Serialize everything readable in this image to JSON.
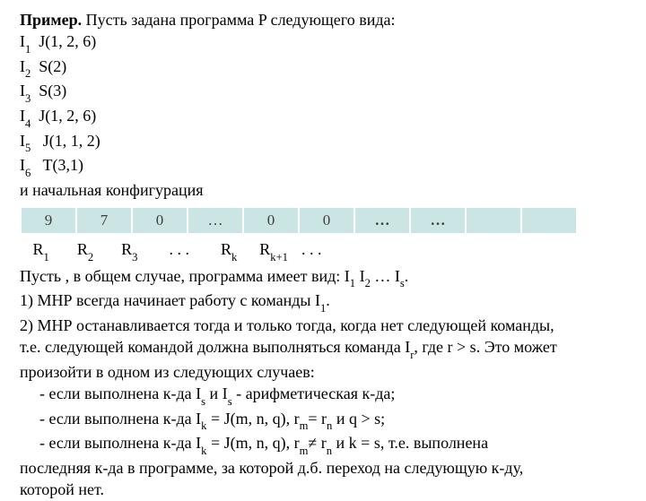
{
  "intro_bold": "Пример.",
  "intro_rest": " Пусть задана программа P  следующего вида:",
  "instr": [
    {
      "idx": "1",
      "body": "J(1, 2, 6)",
      "pad": "  "
    },
    {
      "idx": "2",
      "body": "S(2)",
      "pad": "  "
    },
    {
      "idx": "3",
      "body": "S(3)",
      "pad": "  "
    },
    {
      "idx": "4",
      "body": "J(1, 2, 6)",
      "pad": "  "
    },
    {
      "idx": "5",
      "body": "J(1, 1, 2)",
      "pad": "   "
    },
    {
      "idx": "6",
      "body": "T(3,1)",
      "pad": "   "
    }
  ],
  "init_conf": "и начальная конфигурация",
  "cells": [
    "9",
    "7",
    "0",
    "…",
    "0",
    "0",
    "…",
    "…",
    "",
    ""
  ],
  "rlabels": {
    "r1": "R",
    "r1s": "1",
    "r2": "R",
    "r2s": "2",
    "r3": "R",
    "r3s": "3",
    "dots1": ". . .",
    "rk": "R",
    "rks": "k",
    "rk1": "R",
    "rk1s": "k+1",
    "dots2": ". . ."
  },
  "let": {
    "prefix": "Пусть , в общем случае, программа имеет вид: I",
    "s1": "1",
    "mid1": " I",
    "s2": "2",
    "mid2": " … I",
    "s3": "s",
    "suffix": "."
  },
  "p1": {
    "a": "1) МНР всегда начинает работу с команды I",
    "s": "1",
    "b": "."
  },
  "p2a": "2) МНР останавливается тогда и только тогда, когда нет следующей команды,",
  "p2b": {
    "a": "т.е. следующей командой должна выполняться команда I",
    "s": "r",
    "b": ", где r > s. Это может"
  },
  "p2c": "произойти в одном из следующих случаев:",
  "c1": {
    "a": "- если выполнена к-да I",
    "s1": "s",
    "b": " и I",
    "s2": "s",
    "c": " - арифметическая к-да;"
  },
  "c2": {
    "a": "- если выполнена к-да I",
    "s1": "k",
    "b": " = J(m, n, q),  r",
    "s2": "m",
    "c": "= r",
    "s3": "n",
    "d": " и  q > s;"
  },
  "c3": {
    "a": "- если выполнена к-да I",
    "s1": "k",
    "b": " = J(m, n, q),  r",
    "s2": "m",
    "c": "≠ r",
    "s3": "n",
    "d": " и  k = s, т.е. выполнена"
  },
  "c3b": "последняя к-да в программе, за которой д.б. переход на следующую к-ду,",
  "c3c": "которой нет."
}
